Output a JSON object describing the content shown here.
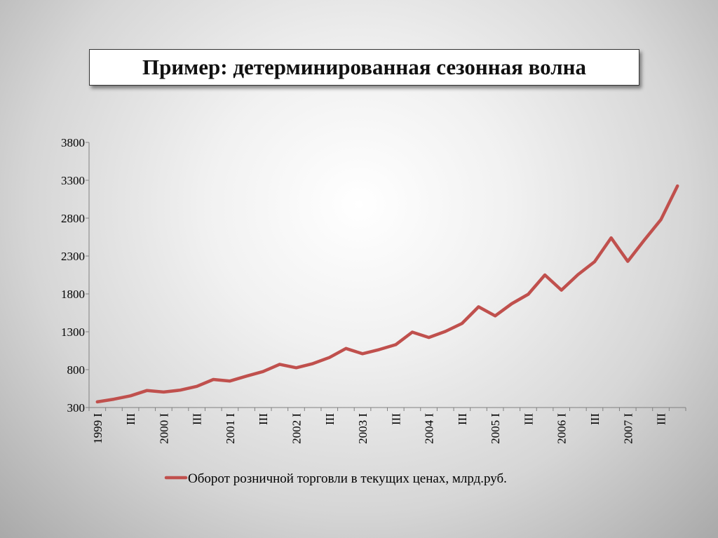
{
  "slide": {
    "title": "Пример: детерминированная сезонная волна"
  },
  "chart_data": {
    "type": "line",
    "ylim": [
      300,
      3800
    ],
    "yticks": [
      300,
      800,
      1300,
      1800,
      2300,
      2800,
      3300,
      3800
    ],
    "x_tick_labels": [
      "1999 I",
      "III",
      "2000 I",
      "III",
      "2001 I",
      "III",
      "2002 I",
      "III",
      "2003 I",
      "III",
      "2004 I",
      "III",
      "2005 I",
      "III",
      "2006 I",
      "III",
      "2007 I",
      "III"
    ],
    "grid": false,
    "legend_position": "bottom",
    "series": [
      {
        "name": "Оборот розничной торговли в текущих ценах, млрд.руб.",
        "color": "#c0504d",
        "values": [
          375,
          410,
          455,
          525,
          505,
          530,
          580,
          670,
          650,
          715,
          775,
          870,
          825,
          880,
          960,
          1080,
          1010,
          1065,
          1130,
          1295,
          1225,
          1305,
          1410,
          1630,
          1510,
          1670,
          1795,
          2050,
          1850,
          2055,
          2225,
          2540,
          2230,
          2510,
          2780,
          3225
        ]
      }
    ]
  }
}
